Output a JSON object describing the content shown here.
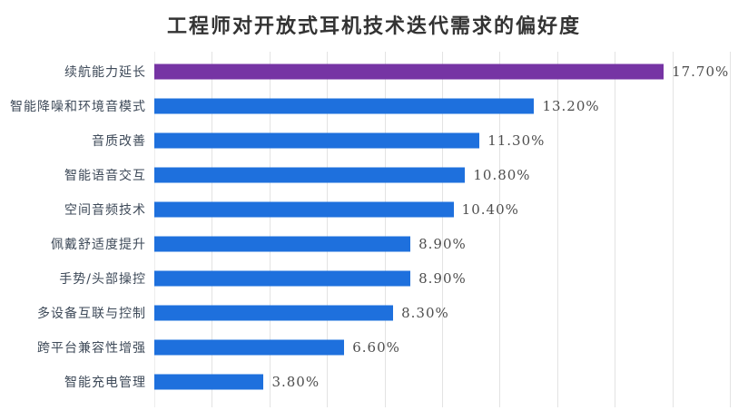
{
  "chart_data": {
    "type": "bar",
    "orientation": "horizontal",
    "title": "工程师对开放式耳机技术迭代需求的偏好度",
    "categories": [
      "续航能力延长",
      "智能降噪和环境音模式",
      "音质改善",
      "智能语音交互",
      "空间音频技术",
      "佩戴舒适度提升",
      "手势/头部操控",
      "多设备互联与控制",
      "跨平台兼容性增强",
      "智能充电管理"
    ],
    "values": [
      17.7,
      13.2,
      11.3,
      10.8,
      10.4,
      8.9,
      8.9,
      8.3,
      6.6,
      3.8
    ],
    "value_labels": [
      "17.70%",
      "13.20%",
      "11.30%",
      "10.80%",
      "10.40%",
      "8.90%",
      "8.90%",
      "8.30%",
      "6.60%",
      "3.80%"
    ],
    "xlim": [
      0,
      20
    ],
    "grid_step_percent": 2,
    "grid": true,
    "legend": false,
    "highlight_index": 0,
    "colors": {
      "highlight_bar": "#7634A4",
      "default_bar": "#1E70DD",
      "grid_line": "#E3E3E3",
      "title_text": "#333333",
      "category_text": "#3E4A59",
      "value_text": "#4D4D4D",
      "background": "#FFFFFF"
    }
  }
}
